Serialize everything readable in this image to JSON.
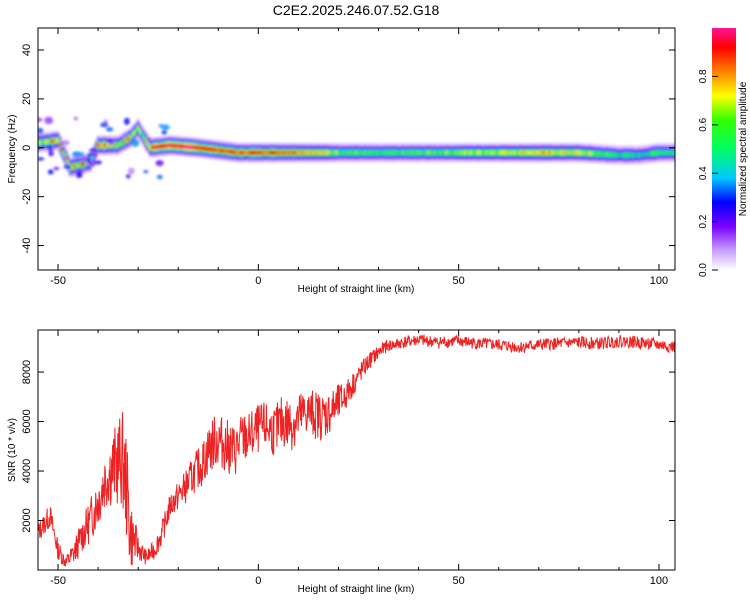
{
  "figure_title": "C2E2.2025.246.07.52.G18",
  "chart_data": [
    {
      "type": "heatmap",
      "name": "spectrogram",
      "xlabel": "Height of straight line (km)",
      "ylabel": "Frequency (Hz)",
      "xlim": [
        -55,
        104
      ],
      "ylim": [
        -50,
        49
      ],
      "xticks": [
        -50,
        0,
        50,
        100
      ],
      "yticks": [
        -40,
        -20,
        0,
        20,
        40
      ],
      "colorbar": {
        "label": "Normalized spectral amplitude",
        "range": [
          0,
          1
        ],
        "ticks": [
          "0.0",
          "0.2",
          "0.4",
          "0.6",
          "0.8"
        ],
        "colors": [
          "#ffffff",
          "#c8a0ff",
          "#7a00ff",
          "#0000ff",
          "#00c8ff",
          "#00ff66",
          "#33ff00",
          "#ffff00",
          "#ff8000",
          "#ff0000",
          "#ff1493"
        ]
      },
      "ridge": [
        {
          "x": -55,
          "f": 2,
          "amp": 0.6
        },
        {
          "x": -50,
          "f": 3,
          "amp": 0.7
        },
        {
          "x": -47,
          "f": -8,
          "amp": 0.75
        },
        {
          "x": -42,
          "f": -6,
          "amp": 0.6
        },
        {
          "x": -40,
          "f": 1,
          "amp": 0.8
        },
        {
          "x": -35,
          "f": 1,
          "amp": 0.6
        },
        {
          "x": -32,
          "f": 4,
          "amp": 0.7
        },
        {
          "x": -30,
          "f": 8,
          "amp": 0.5
        },
        {
          "x": -27,
          "f": 0,
          "amp": 0.8
        },
        {
          "x": -22,
          "f": 1,
          "amp": 0.95
        },
        {
          "x": -15,
          "f": 0,
          "amp": 0.9
        },
        {
          "x": -10,
          "f": -1,
          "amp": 0.85
        },
        {
          "x": -5,
          "f": -2,
          "amp": 0.8
        },
        {
          "x": 0,
          "f": -2,
          "amp": 0.85
        },
        {
          "x": 10,
          "f": -2,
          "amp": 0.8
        },
        {
          "x": 20,
          "f": -2,
          "amp": 0.6
        },
        {
          "x": 30,
          "f": -2,
          "amp": 0.5
        },
        {
          "x": 40,
          "f": -2,
          "amp": 0.55
        },
        {
          "x": 50,
          "f": -2,
          "amp": 0.6
        },
        {
          "x": 60,
          "f": -2,
          "amp": 0.65
        },
        {
          "x": 70,
          "f": -2,
          "amp": 0.7
        },
        {
          "x": 80,
          "f": -2,
          "amp": 0.65
        },
        {
          "x": 90,
          "f": -3,
          "amp": 0.5
        },
        {
          "x": 95,
          "f": -3,
          "amp": 0.45
        },
        {
          "x": 100,
          "f": -2,
          "amp": 0.55
        },
        {
          "x": 104,
          "f": -2,
          "amp": 0.5
        }
      ]
    },
    {
      "type": "line",
      "name": "snr",
      "xlabel": "Height of straight line (km)",
      "ylabel": "SNR (10 * v/v)",
      "xlim": [
        -55,
        104
      ],
      "ylim": [
        0,
        9700
      ],
      "xticks": [
        -50,
        0,
        50,
        100
      ],
      "yticks": [
        2000,
        4000,
        6000,
        8000
      ],
      "color": "#ee2222",
      "series": [
        {
          "name": "SNR",
          "x": [
            -55,
            -52,
            -50,
            -48,
            -46,
            -44,
            -42,
            -40,
            -38,
            -36,
            -34,
            -33,
            -32,
            -30,
            -28,
            -26,
            -24,
            -22,
            -20,
            -18,
            -16,
            -14,
            -12,
            -10,
            -8,
            -6,
            -4,
            -2,
            0,
            2,
            4,
            6,
            8,
            10,
            12,
            14,
            16,
            18,
            20,
            22,
            24,
            26,
            28,
            30,
            32,
            34,
            36,
            38,
            40,
            45,
            50,
            55,
            60,
            65,
            70,
            75,
            80,
            85,
            90,
            95,
            100,
            104
          ],
          "y": [
            1500,
            2200,
            800,
            300,
            700,
            1400,
            2000,
            2800,
            3800,
            4200,
            4500,
            3500,
            1500,
            900,
            500,
            800,
            1500,
            2600,
            3000,
            3400,
            3900,
            4300,
            5000,
            5300,
            5000,
            4800,
            5300,
            5400,
            5700,
            5800,
            5600,
            6000,
            5900,
            6100,
            6400,
            6300,
            6200,
            6400,
            6700,
            7100,
            7600,
            8100,
            8500,
            8800,
            9050,
            9100,
            9200,
            9250,
            9300,
            9200,
            9250,
            9150,
            9100,
            9000,
            9100,
            9150,
            9200,
            9150,
            9250,
            9200,
            9100,
            9000
          ],
          "jitter": [
            400,
            500,
            400,
            300,
            500,
            700,
            900,
            1100,
            1300,
            1600,
            2000,
            2200,
            1500,
            500,
            300,
            400,
            500,
            500,
            600,
            700,
            800,
            900,
            1100,
            1100,
            1100,
            1100,
            1100,
            1000,
            1000,
            1000,
            1000,
            1100,
            1100,
            1100,
            1000,
            1000,
            1000,
            900,
            800,
            600,
            500,
            400,
            350,
            300,
            250,
            250,
            250,
            250,
            250,
            250,
            250,
            250,
            250,
            250,
            250,
            250,
            250,
            250,
            250,
            250,
            250,
            250
          ]
        }
      ]
    }
  ]
}
